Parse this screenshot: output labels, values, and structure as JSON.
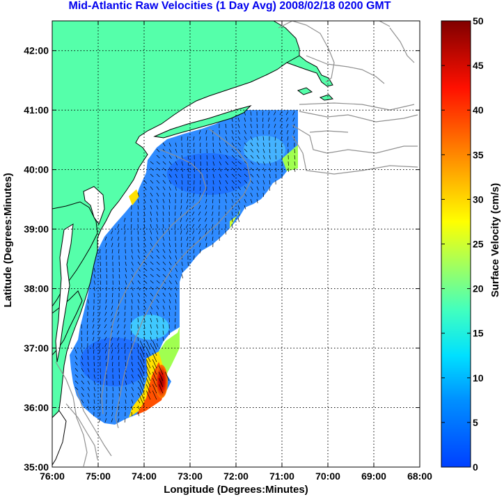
{
  "title": "Mid-Atlantic Raw Velocities (1 Day Avg) 2008/02/18 0200 GMT",
  "map": {
    "xlabel": "Longitude (Degrees:Minutes)",
    "ylabel": "Latitude (Degrees:Minutes)",
    "lon_range": [
      -76,
      -68
    ],
    "lat_range": [
      35,
      42.5
    ],
    "x_ticks": [
      "76:00",
      "75:00",
      "74:00",
      "73:00",
      "72:00",
      "71:00",
      "70:00",
      "69:00",
      "68:00"
    ],
    "y_ticks": [
      "35:00",
      "36:00",
      "37:00",
      "38:00",
      "39:00",
      "40:00",
      "41:00",
      "42:00"
    ],
    "land_color": "#55ffaa",
    "grid": "dotted"
  },
  "colorbar": {
    "label": "Surface Velocity (cm/s)",
    "range": [
      0,
      50
    ],
    "ticks": [
      "0",
      "5",
      "10",
      "15",
      "20",
      "25",
      "30",
      "35",
      "40",
      "45",
      "50"
    ],
    "colormap": "jet"
  }
}
